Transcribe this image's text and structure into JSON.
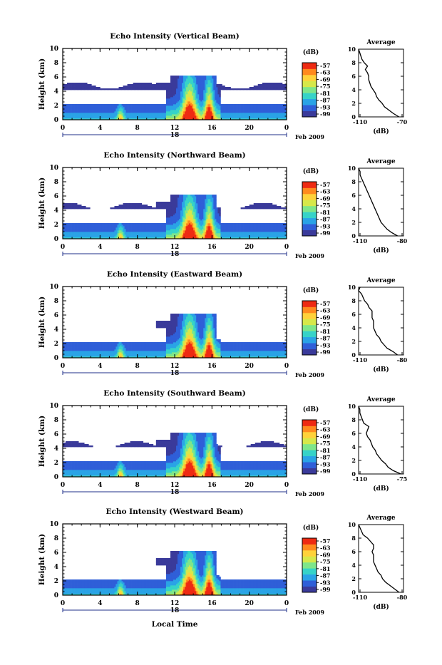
{
  "colors": {
    "colormap": [
      "#3a3a9a",
      "#2f5fd8",
      "#2aa3e6",
      "#36d3c8",
      "#7ee68a",
      "#d6e84a",
      "#ffd23a",
      "#ff8a1e",
      "#ee2a12"
    ],
    "axis": "#000000",
    "date_axis": "#1f2f8a"
  },
  "x_axis": {
    "ticks": [
      "0",
      "4",
      "8",
      "12",
      "16",
      "20",
      "0"
    ],
    "date_label": "Feb 2009",
    "xlabel": "Local Time"
  },
  "y_axis": {
    "label": "Height (km)",
    "ticks": [
      "0",
      "2",
      "4",
      "6",
      "8",
      "10"
    ]
  },
  "colorbar": {
    "title": "(dB)",
    "ticks": [
      "-57",
      "-63",
      "-69",
      "-75",
      "-81",
      "-87",
      "-93",
      "-99"
    ]
  },
  "average_title": "Average",
  "average_xlabel": "(dB)",
  "chart_data": [
    {
      "type": "heatmap",
      "title": "Echo Intensity (Vertical Beam)",
      "date_day": "18",
      "x_range_hours": [
        0,
        24
      ],
      "ylim_km": [
        0,
        10
      ],
      "clim_db": [
        -99,
        -57
      ],
      "profile": {
        "xticks": [
          "-110",
          "-70"
        ],
        "xlim": [
          -110,
          -70
        ],
        "heights_km": [
          0,
          0.5,
          1,
          1.5,
          2,
          2.5,
          3,
          3.5,
          4,
          4.5,
          5,
          5.5,
          6,
          6.5,
          7,
          7.5,
          8,
          8.5,
          9,
          9.5,
          10
        ],
        "values_db": [
          -74,
          -79,
          -83,
          -87,
          -89,
          -92,
          -94,
          -95,
          -97,
          -99,
          -100,
          -101,
          -101,
          -102,
          -104,
          -102,
          -105,
          -107,
          -108,
          -109,
          -110
        ]
      }
    },
    {
      "type": "heatmap",
      "title": "Echo Intensity (Northward Beam)",
      "date_day": "18",
      "x_range_hours": [
        0,
        24
      ],
      "ylim_km": [
        0,
        10
      ],
      "clim_db": [
        -99,
        -57
      ],
      "profile": {
        "xticks": [
          "-110",
          "-80"
        ],
        "xlim": [
          -110,
          -80
        ],
        "heights_km": [
          0,
          0.5,
          1,
          1.5,
          2,
          2.5,
          3,
          3.5,
          4,
          4.5,
          5,
          5.5,
          6,
          6.5,
          7,
          7.5,
          8,
          8.5,
          9,
          9.5,
          10
        ],
        "values_db": [
          -84,
          -88,
          -91,
          -93,
          -95,
          -96,
          -97,
          -98,
          -99,
          -100,
          -101,
          -102,
          -103,
          -104,
          -105,
          -106,
          -107,
          -108,
          -109,
          -109,
          -110
        ]
      }
    },
    {
      "type": "heatmap",
      "title": "Echo Intensity (Eastward Beam)",
      "date_day": "18",
      "x_range_hours": [
        0,
        24
      ],
      "ylim_km": [
        0,
        10
      ],
      "clim_db": [
        -99,
        -57
      ],
      "profile": {
        "xticks": [
          "-110",
          "-80"
        ],
        "xlim": [
          -110,
          -80
        ],
        "heights_km": [
          0,
          0.5,
          1,
          1.5,
          2,
          2.5,
          3,
          3.5,
          4,
          4.5,
          5,
          5.5,
          6,
          6.5,
          7,
          7.5,
          8,
          8.5,
          9,
          9.5,
          10
        ],
        "values_db": [
          -84,
          -87,
          -91,
          -93,
          -95,
          -96,
          -98,
          -99,
          -100,
          -100,
          -100,
          -101,
          -101,
          -101,
          -103,
          -104,
          -106,
          -107,
          -108,
          -110,
          -109
        ]
      }
    },
    {
      "type": "heatmap",
      "title": "Echo Intensity (Southward Beam)",
      "date_day": "18",
      "x_range_hours": [
        0,
        24
      ],
      "ylim_km": [
        0,
        10
      ],
      "clim_db": [
        -99,
        -57
      ],
      "profile": {
        "xticks": [
          "-110",
          "-75"
        ],
        "xlim": [
          -110,
          -75
        ],
        "heights_km": [
          0,
          0.5,
          1,
          1.5,
          2,
          2.5,
          3,
          3.5,
          4,
          4.5,
          5,
          5.5,
          6,
          6.5,
          7,
          7.5,
          8,
          8.5,
          9,
          9.5,
          10
        ],
        "values_db": [
          -77,
          -83,
          -87,
          -89,
          -92,
          -94,
          -96,
          -97,
          -99,
          -100,
          -101,
          -103,
          -104,
          -103,
          -102,
          -106,
          -107,
          -108,
          -109,
          -109,
          -110
        ]
      }
    },
    {
      "type": "heatmap",
      "title": "Echo Intensity (Westward Beam)",
      "date_day": "18",
      "x_range_hours": [
        0,
        24
      ],
      "ylim_km": [
        0,
        10
      ],
      "clim_db": [
        -99,
        -57
      ],
      "profile": {
        "xticks": [
          "-110",
          "-80"
        ],
        "xlim": [
          -110,
          -80
        ],
        "heights_km": [
          0,
          0.5,
          1,
          1.5,
          2,
          2.5,
          3,
          3.5,
          4,
          4.5,
          5,
          5.5,
          6,
          6.5,
          7,
          7.5,
          8,
          8.5,
          9,
          9.5,
          10
        ],
        "values_db": [
          -83,
          -86,
          -89,
          -92,
          -94,
          -95,
          -97,
          -98,
          -99,
          -100,
          -100,
          -100,
          -101,
          -100,
          -100,
          -102,
          -104,
          -107,
          -108,
          -109,
          -110
        ]
      }
    }
  ]
}
